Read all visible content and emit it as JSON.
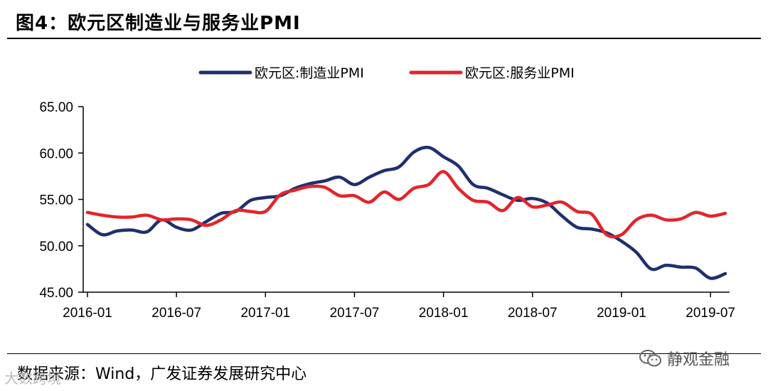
{
  "header": {
    "title": "图4：欧元区制造业与服务业PMI"
  },
  "footer": {
    "source": "数据来源：Wind，广发证券发展研究中心",
    "watermark_right": "静观金融",
    "watermark_left": "大数跨境"
  },
  "icons": {
    "wechat": "wechat-icon"
  },
  "chart_data": {
    "type": "line",
    "title": "",
    "xlabel": "",
    "ylabel": "",
    "ylim": [
      45,
      65
    ],
    "yticks": [
      "65.00",
      "60.00",
      "55.00",
      "50.00",
      "45.00"
    ],
    "ytick_values": [
      65,
      60,
      55,
      50,
      45
    ],
    "xtick_labels": [
      "2016-01",
      "2016-07",
      "2017-01",
      "2017-07",
      "2018-01",
      "2018-07",
      "2019-01",
      "2019-07"
    ],
    "xtick_indices": [
      0,
      6,
      12,
      18,
      24,
      30,
      36,
      42
    ],
    "grid": false,
    "legend_position": "top-center",
    "x": [
      "2016-01",
      "2016-02",
      "2016-03",
      "2016-04",
      "2016-05",
      "2016-06",
      "2016-07",
      "2016-08",
      "2016-09",
      "2016-10",
      "2016-11",
      "2016-12",
      "2017-01",
      "2017-02",
      "2017-03",
      "2017-04",
      "2017-05",
      "2017-06",
      "2017-07",
      "2017-08",
      "2017-09",
      "2017-10",
      "2017-11",
      "2017-12",
      "2018-01",
      "2018-02",
      "2018-03",
      "2018-04",
      "2018-05",
      "2018-06",
      "2018-07",
      "2018-08",
      "2018-09",
      "2018-10",
      "2018-11",
      "2018-12",
      "2019-01",
      "2019-02",
      "2019-03",
      "2019-04",
      "2019-05",
      "2019-06",
      "2019-07",
      "2019-08"
    ],
    "series": [
      {
        "name": "欧元区:制造业PMI",
        "color": "#1f2f6e",
        "values": [
          52.3,
          51.2,
          51.6,
          51.7,
          51.5,
          52.8,
          52.0,
          51.7,
          52.6,
          53.5,
          53.7,
          54.9,
          55.2,
          55.4,
          56.2,
          56.7,
          57.0,
          57.4,
          56.6,
          57.4,
          58.1,
          58.5,
          60.1,
          60.6,
          59.6,
          58.6,
          56.6,
          56.2,
          55.5,
          54.9,
          55.1,
          54.6,
          53.2,
          52.0,
          51.8,
          51.4,
          50.5,
          49.3,
          47.5,
          47.9,
          47.7,
          47.6,
          46.5,
          47.0
        ]
      },
      {
        "name": "欧元区:服务业PMI",
        "color": "#e3242b",
        "values": [
          53.6,
          53.3,
          53.1,
          53.1,
          53.3,
          52.8,
          52.9,
          52.8,
          52.2,
          52.8,
          53.8,
          53.7,
          53.7,
          55.5,
          56.0,
          56.4,
          56.3,
          55.4,
          55.4,
          54.7,
          55.8,
          55.0,
          56.2,
          56.6,
          58.0,
          56.2,
          54.9,
          54.7,
          53.8,
          55.2,
          54.2,
          54.4,
          54.7,
          53.7,
          53.4,
          51.2,
          51.2,
          52.8,
          53.3,
          52.8,
          52.9,
          53.6,
          53.2,
          53.5
        ]
      }
    ]
  }
}
